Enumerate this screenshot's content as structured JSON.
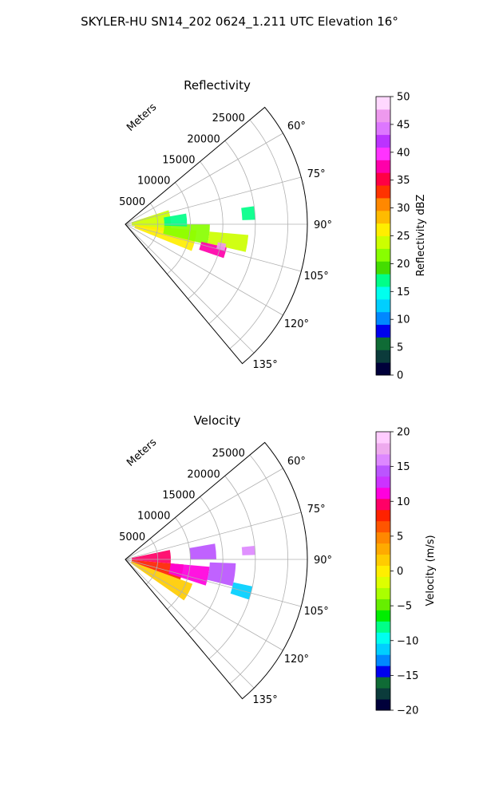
{
  "figure": {
    "title": "SKYLER-HU  SN14_202  0624_1.211 UTC Elevation 16°"
  },
  "chart_data": [
    {
      "type": "heatmap",
      "projection": "polar-sector",
      "title": "Reflectivity",
      "radial_axis_label": "Meters",
      "radial_ticks": [
        5000,
        10000,
        15000,
        20000,
        25000
      ],
      "radial_tick_labels": [
        "5000",
        "10000",
        "15000",
        "20000",
        "25000"
      ],
      "radial_max": 28000,
      "azimuth_range": [
        50,
        140
      ],
      "azimuth_ticks": [
        60,
        75,
        90,
        105,
        120,
        135
      ],
      "azimuth_tick_labels": [
        "60°",
        "75°",
        "90°",
        "105°",
        "120°",
        "135°"
      ],
      "grid": true,
      "colorbar": {
        "label": "Reflectivity dBZ",
        "min": 0,
        "max": 50,
        "ticks": [
          0,
          5,
          10,
          15,
          20,
          25,
          30,
          35,
          40,
          45,
          50
        ],
        "tick_labels": [
          "0",
          "5",
          "10",
          "15",
          "20",
          "25",
          "30",
          "35",
          "40",
          "45",
          "50"
        ],
        "colors": [
          "#00003a",
          "#0b3b3b",
          "#0f6b35",
          "#0000ee",
          "#0088ff",
          "#00cfff",
          "#00ffee",
          "#00ff88",
          "#44dd00",
          "#88ff00",
          "#ccff00",
          "#ffee00",
          "#ffbb00",
          "#ff8800",
          "#ff3300",
          "#ff0044",
          "#ff00aa",
          "#ff33ff",
          "#bb33ff",
          "#dd77ff",
          "#ee99ee",
          "#ffd8ff"
        ]
      },
      "echoes": [
        {
          "az": [
            72,
            100
          ],
          "range": [
            1000,
            7000
          ],
          "value": 24
        },
        {
          "az": [
            95,
            112
          ],
          "range": [
            1500,
            11000
          ],
          "value": 26
        },
        {
          "az": [
            90,
            104
          ],
          "range": [
            6000,
            13000
          ],
          "value": 22
        },
        {
          "az": [
            80,
            92
          ],
          "range": [
            6000,
            9500
          ],
          "value": 18
        },
        {
          "az": [
            95,
            103
          ],
          "range": [
            13000,
            19000
          ],
          "value": 24
        },
        {
          "az": [
            82,
            88
          ],
          "range": [
            18000,
            20000
          ],
          "value": 17
        },
        {
          "az": [
            103,
            109
          ],
          "range": [
            12000,
            16000
          ],
          "value": 38
        },
        {
          "az": [
            101,
            105
          ],
          "range": [
            14500,
            15800
          ],
          "value": 46
        }
      ]
    },
    {
      "type": "heatmap",
      "projection": "polar-sector",
      "title": "Velocity",
      "radial_axis_label": "Meters",
      "radial_ticks": [
        5000,
        10000,
        15000,
        20000,
        25000
      ],
      "radial_tick_labels": [
        "5000",
        "10000",
        "15000",
        "20000",
        "25000"
      ],
      "radial_max": 28000,
      "azimuth_range": [
        50,
        140
      ],
      "azimuth_ticks": [
        60,
        75,
        90,
        105,
        120,
        135
      ],
      "azimuth_tick_labels": [
        "60°",
        "75°",
        "90°",
        "105°",
        "120°",
        "135°"
      ],
      "grid": true,
      "colorbar": {
        "label": "Velocity (m/s)",
        "min": -20,
        "max": 20,
        "ticks": [
          -20,
          -15,
          -10,
          -5,
          0,
          5,
          10,
          15,
          20
        ],
        "tick_labels": [
          "−20",
          "−15",
          "−10",
          "−5",
          "0",
          "5",
          "10",
          "15",
          "20"
        ],
        "colors": [
          "#00003a",
          "#0b3b3b",
          "#0f6b35",
          "#0000ee",
          "#0088ff",
          "#00cfff",
          "#00ffee",
          "#00ff88",
          "#00ee00",
          "#66ee00",
          "#aaff00",
          "#ddff00",
          "#ffee00",
          "#ffcc00",
          "#ffaa00",
          "#ff8800",
          "#ff5500",
          "#ff2200",
          "#ff0066",
          "#ff00dd",
          "#cc33ff",
          "#bb55ff",
          "#dd88ff",
          "#eeaaee",
          "#ffccff"
        ]
      },
      "echoes": [
        {
          "az": [
            110,
            125
          ],
          "range": [
            1000,
            11000
          ],
          "value": 2
        },
        {
          "az": [
            95,
            110
          ],
          "range": [
            1000,
            9000
          ],
          "value": 8
        },
        {
          "az": [
            78,
            95
          ],
          "range": [
            1000,
            7000
          ],
          "value": 9
        },
        {
          "az": [
            95,
            108
          ],
          "range": [
            7000,
            13000
          ],
          "value": 11
        },
        {
          "az": [
            92,
            104
          ],
          "range": [
            13000,
            17000
          ],
          "value": 14
        },
        {
          "az": [
            102,
            108
          ],
          "range": [
            17000,
            20000
          ],
          "value": -11
        },
        {
          "az": [
            80,
            90
          ],
          "range": [
            10000,
            14000
          ],
          "value": 15
        },
        {
          "az": [
            84,
            88
          ],
          "range": [
            18000,
            20000
          ],
          "value": 16
        }
      ]
    }
  ]
}
